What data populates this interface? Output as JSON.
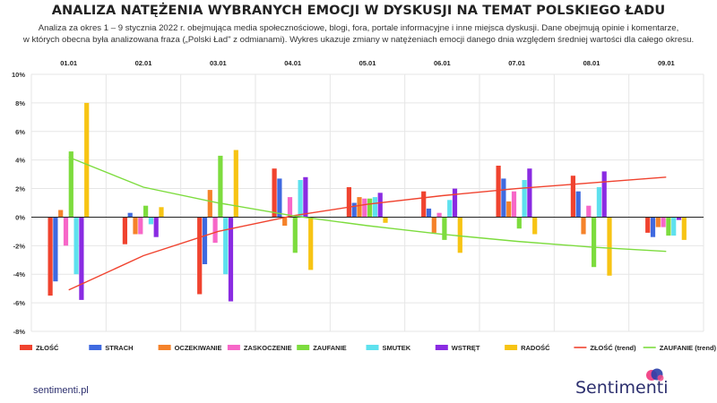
{
  "header": {
    "title": "ANALIZA NATĘŻENIA WYBRANYCH EMOCJI W DYSKUSJI NA TEMAT POLSKIEGO ŁADU",
    "subtitle_line1": "Analiza za okres 1 – 9 stycznia 2022 r. obejmująca media społecznościowe, blogi, fora, portale informacyjne i inne miejsca dyskusji. Dane obejmują opinie i komentarze,",
    "subtitle_line2": "w których obecna była analizowana fraza („Polski Ład\" z odmianami). Wykres ukazuje zmiany w natężeniach emocji danego dnia względem średniej wartości dla całego okresu."
  },
  "footer": {
    "url": "sentimenti.pl",
    "brand": "Sentimenti",
    "brand_logo_icon": "heads-logo-icon"
  },
  "chart_data": {
    "type": "bar",
    "categories": [
      "01.01",
      "02.01",
      "03.01",
      "04.01",
      "05.01",
      "06.01",
      "07.01",
      "08.01",
      "09.01"
    ],
    "ylim": [
      -8,
      10
    ],
    "yticks": [
      -8,
      -6,
      -4,
      -2,
      0,
      2,
      4,
      6,
      8,
      10
    ],
    "ytick_format": "%",
    "grid": true,
    "legend_position": "bottom",
    "series": [
      {
        "name": "ZŁOŚĆ",
        "color": "#f0432f",
        "values": [
          -5.5,
          -1.9,
          -5.4,
          3.4,
          2.1,
          1.8,
          3.6,
          2.9,
          -1.1
        ]
      },
      {
        "name": "STRACH",
        "color": "#3f6ae0",
        "values": [
          -4.5,
          0.3,
          -3.3,
          2.7,
          1.0,
          0.6,
          2.7,
          1.8,
          -1.4
        ]
      },
      {
        "name": "OCZEKIWANIE",
        "color": "#f5822a",
        "values": [
          0.5,
          -1.2,
          1.9,
          -0.6,
          1.4,
          -1.1,
          1.1,
          -1.2,
          -0.7
        ]
      },
      {
        "name": "ZASKOCZENIE",
        "color": "#f767c8",
        "values": [
          -2.0,
          -1.2,
          -1.8,
          1.4,
          1.3,
          0.3,
          1.8,
          0.8,
          -0.7
        ]
      },
      {
        "name": "ZAUFANIE",
        "color": "#7ddc3e",
        "values": [
          4.6,
          0.8,
          4.3,
          -2.5,
          1.3,
          -1.6,
          -0.8,
          -3.5,
          -1.3
        ]
      },
      {
        "name": "SMUTEK",
        "color": "#5ee1ee",
        "values": [
          -4.0,
          -0.5,
          -4.0,
          2.6,
          1.4,
          1.2,
          2.6,
          2.1,
          -1.3
        ]
      },
      {
        "name": "WSTRĘT",
        "color": "#8a2be2",
        "values": [
          -5.8,
          -1.4,
          -5.9,
          2.8,
          1.7,
          2.0,
          3.4,
          3.2,
          -0.2
        ]
      },
      {
        "name": "RADOŚĆ",
        "color": "#f7c414",
        "values": [
          8.0,
          0.7,
          4.7,
          -3.7,
          -0.4,
          -2.5,
          -1.2,
          -4.1,
          -1.6
        ]
      }
    ],
    "trendlines": [
      {
        "name": "ZŁOŚĆ (trend)",
        "color": "#f0432f",
        "x": [
          1,
          2,
          3,
          4,
          5,
          6,
          7,
          8,
          9
        ],
        "y": [
          -5.1,
          -2.7,
          -1.0,
          0.1,
          0.9,
          1.5,
          2.0,
          2.4,
          2.8
        ]
      },
      {
        "name": "ZAUFANIE (trend)",
        "color": "#7ddc3e",
        "x": [
          1,
          2,
          3,
          4,
          5,
          6,
          7,
          8,
          9
        ],
        "y": [
          4.2,
          2.1,
          1.0,
          0.1,
          -0.6,
          -1.2,
          -1.7,
          -2.1,
          -2.4
        ]
      }
    ]
  }
}
